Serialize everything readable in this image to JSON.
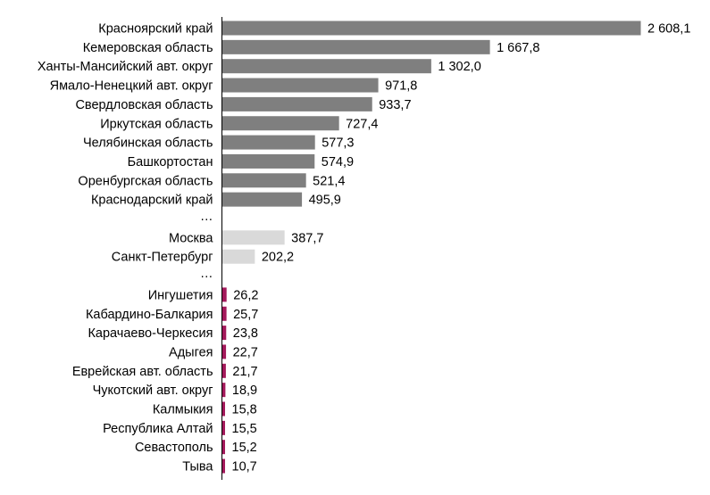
{
  "chart_data": {
    "type": "bar",
    "orientation": "horizontal",
    "title": "",
    "xlabel": "",
    "ylabel": "",
    "xlim": [
      0,
      2608.1
    ],
    "grid": false,
    "legend": "none",
    "colors": {
      "top": "#7f7f7f",
      "cities": "#d9d9d9",
      "bottom": "#a3195b",
      "axis": "#000000"
    },
    "rows": [
      {
        "category": "Красноярский край",
        "value": 2608.1,
        "label": "2 608,1",
        "group": "top"
      },
      {
        "category": "Кемеровская область",
        "value": 1667.8,
        "label": "1 667,8",
        "group": "top"
      },
      {
        "category": "Ханты-Мансийский авт. округ",
        "value": 1302.0,
        "label": "1 302,0",
        "group": "top"
      },
      {
        "category": "Ямало-Ненецкий авт. округ",
        "value": 971.8,
        "label": "971,8",
        "group": "top"
      },
      {
        "category": "Свердловская область",
        "value": 933.7,
        "label": "933,7",
        "group": "top"
      },
      {
        "category": "Иркутская область",
        "value": 727.4,
        "label": "727,4",
        "group": "top"
      },
      {
        "category": "Челябинская область",
        "value": 577.3,
        "label": "577,3",
        "group": "top"
      },
      {
        "category": "Башкортостан",
        "value": 574.9,
        "label": "574,9",
        "group": "top"
      },
      {
        "category": "Оренбургская область",
        "value": 521.4,
        "label": "521,4",
        "group": "top"
      },
      {
        "category": "Краснодарский край",
        "value": 495.9,
        "label": "495,9",
        "group": "top"
      },
      {
        "category": "…",
        "value": null,
        "label": "",
        "group": "gap"
      },
      {
        "category": "Москва",
        "value": 387.7,
        "label": "387,7",
        "group": "cities"
      },
      {
        "category": "Санкт-Петербург",
        "value": 202.2,
        "label": "202,2",
        "group": "cities"
      },
      {
        "category": "…",
        "value": null,
        "label": "",
        "group": "gap"
      },
      {
        "category": "Ингушетия",
        "value": 26.2,
        "label": "26,2",
        "group": "bottom"
      },
      {
        "category": "Кабардино-Балкария",
        "value": 25.7,
        "label": "25,7",
        "group": "bottom"
      },
      {
        "category": "Карачаево-Черкесия",
        "value": 23.8,
        "label": "23,8",
        "group": "bottom"
      },
      {
        "category": "Адыгея",
        "value": 22.7,
        "label": "22,7",
        "group": "bottom"
      },
      {
        "category": "Еврейская авт. область",
        "value": 21.7,
        "label": "21,7",
        "group": "bottom"
      },
      {
        "category": "Чукотский авт. округ",
        "value": 18.9,
        "label": "18,9",
        "group": "bottom"
      },
      {
        "category": "Калмыкия",
        "value": 15.8,
        "label": "15,8",
        "group": "bottom"
      },
      {
        "category": "Республика Алтай",
        "value": 15.5,
        "label": "15,5",
        "group": "bottom"
      },
      {
        "category": "Севастополь",
        "value": 15.2,
        "label": "15,2",
        "group": "bottom"
      },
      {
        "category": "Тыва",
        "value": 10.7,
        "label": "10,7",
        "group": "bottom"
      }
    ]
  }
}
